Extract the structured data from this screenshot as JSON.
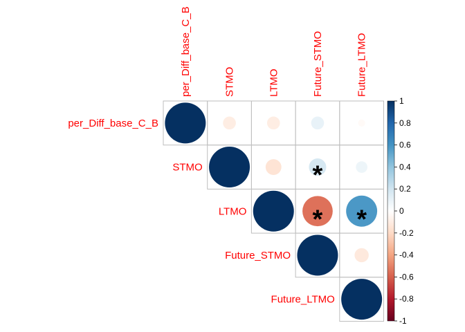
{
  "chart_data": {
    "type": "heatmap",
    "style": "upper-triangle correlation matrix with circles sized and colored by correlation",
    "variables": [
      "per_Diff_base_C_B",
      "STMO",
      "LTMO",
      "Future_STMO",
      "Future_LTMO"
    ],
    "correlations": [
      [
        1.0,
        -0.1,
        -0.1,
        0.1,
        -0.03
      ],
      [
        null,
        1.0,
        -0.15,
        0.18,
        0.08
      ],
      [
        null,
        null,
        1.0,
        -0.55,
        0.58
      ],
      [
        null,
        null,
        null,
        1.0,
        -0.12
      ],
      [
        null,
        null,
        null,
        null,
        1.0
      ]
    ],
    "significant": [
      [
        false,
        false,
        false,
        false,
        false
      ],
      [
        null,
        false,
        false,
        true,
        false
      ],
      [
        null,
        null,
        false,
        true,
        true
      ],
      [
        null,
        null,
        null,
        false,
        false
      ],
      [
        null,
        null,
        null,
        null,
        false
      ]
    ],
    "significance_marker": "*",
    "colorbar": {
      "range": [
        -1,
        1
      ],
      "ticks": [
        "1",
        "0.8",
        "0.6",
        "0.4",
        "0.2",
        "0",
        "-0.2",
        "-0.4",
        "-0.6",
        "-0.8",
        "-1"
      ],
      "colors": [
        "#67001F",
        "#B2182B",
        "#D6604D",
        "#F4A582",
        "#FDDBC7",
        "#FFFFFF",
        "#D1E5F0",
        "#92C5DE",
        "#4393C3",
        "#2166AC",
        "#053061"
      ]
    },
    "label_color": "#FF0000",
    "grid_color": "#BEBEBE"
  }
}
